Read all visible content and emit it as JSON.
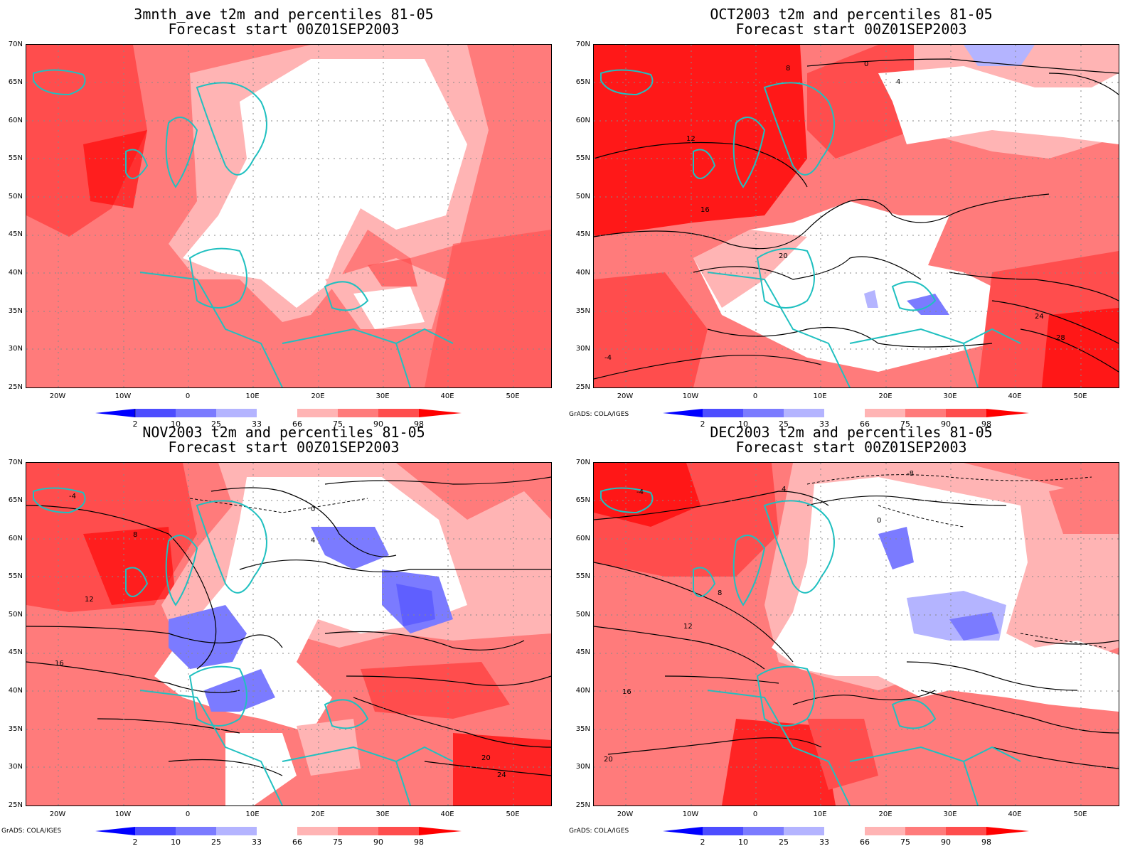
{
  "panels": [
    {
      "line1": "3mnth_ave t2m and percentiles 81-05",
      "line2": "Forecast start 00Z01SEP2003",
      "credit": ""
    },
    {
      "line1": "OCT2003 t2m and percentiles 81-05",
      "line2": "Forecast start 00Z01SEP2003",
      "credit": "GrADS: COLA/IGES"
    },
    {
      "line1": "NOV2003 t2m and percentiles 81-05",
      "line2": "Forecast start 00Z01SEP2003",
      "credit": "GrADS: COLA/IGES"
    },
    {
      "line1": "DEC2003 t2m and percentiles 81-05",
      "line2": "Forecast start 00Z01SEP2003",
      "credit": "GrADS: COLA/IGES"
    }
  ],
  "lat_ticks": [
    "70N",
    "65N",
    "60N",
    "55N",
    "50N",
    "45N",
    "40N",
    "35N",
    "30N",
    "25N"
  ],
  "lon_ticks": [
    "20W",
    "10W",
    "0",
    "10E",
    "20E",
    "30E",
    "40E",
    "50E"
  ],
  "colorbar_labels": [
    "2",
    "10",
    "25",
    "33",
    "66",
    "75",
    "90",
    "98"
  ],
  "colorbar_colors": [
    "#0000ff",
    "#4d4dff",
    "#7b7bff",
    "#b4b4ff",
    "#ffffff",
    "#ffb4b4",
    "#ff7b7b",
    "#ff4d4d",
    "#ff0000"
  ],
  "contour_labels": {
    "oct": [
      "8",
      "0",
      "4",
      "12",
      "16",
      "20",
      "24",
      "28",
      "-4"
    ],
    "nov": [
      "-4",
      "0",
      "4",
      "8",
      "12",
      "16",
      "20",
      "24"
    ],
    "dec": [
      "-8",
      "-4",
      "0",
      "4",
      "8",
      "12",
      "16",
      "20"
    ]
  }
}
